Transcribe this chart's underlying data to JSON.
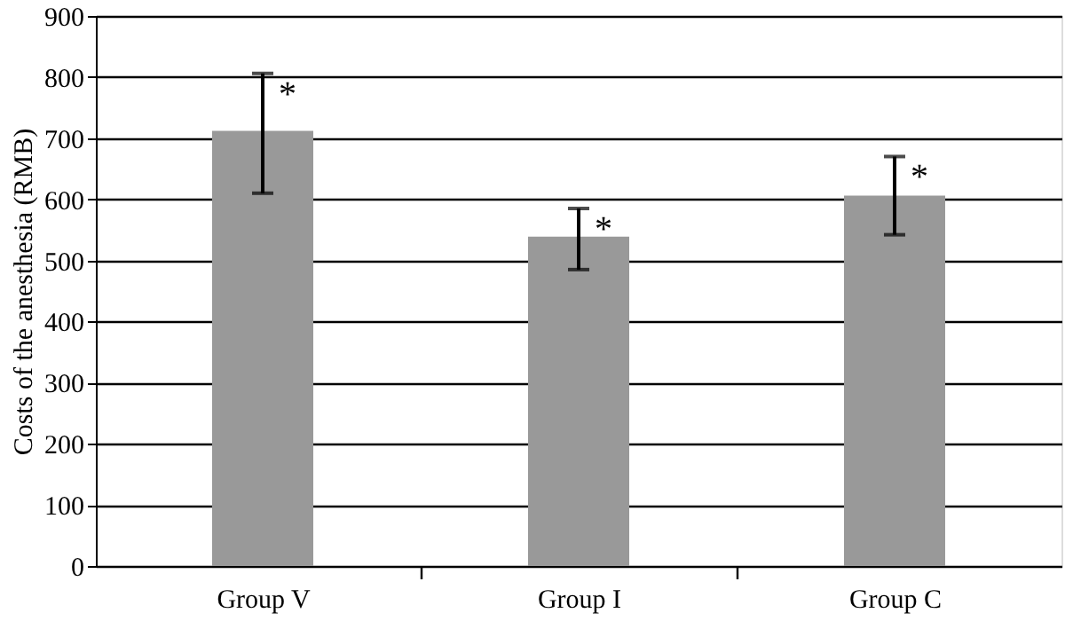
{
  "chart_data": {
    "type": "bar",
    "ylabel": "Costs of the anesthesia (RMB)",
    "categories": [
      "Group V",
      "Group I",
      "Group C"
    ],
    "values": [
      712,
      539,
      606
    ],
    "color": "#999999",
    "errors": [
      [
        610,
        806
      ],
      [
        485,
        585
      ],
      [
        542,
        670
      ]
    ],
    "ylim": [
      0,
      900
    ],
    "yticks": [
      0,
      100,
      200,
      300,
      400,
      500,
      600,
      700,
      800,
      900
    ],
    "grid": "y",
    "annotations": [
      {
        "text": "*",
        "x": "Group V",
        "y": 806
      },
      {
        "text": "*",
        "x": "Group I",
        "y": 585
      },
      {
        "text": "*",
        "x": "Group C",
        "y": 670
      }
    ]
  }
}
